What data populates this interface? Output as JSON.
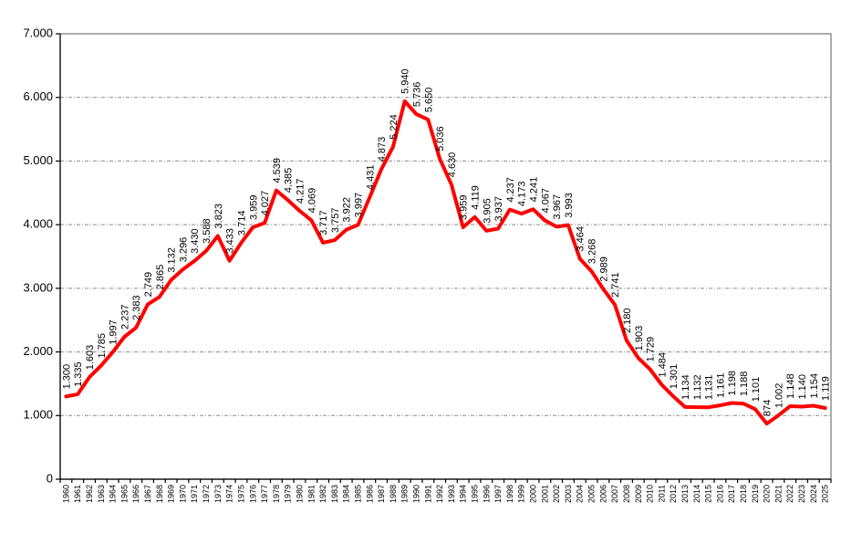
{
  "chart_data": {
    "type": "line",
    "title": "",
    "xlabel": "",
    "ylabel": "",
    "ylim": [
      0,
      7000
    ],
    "yticks": [
      0,
      1000,
      2000,
      3000,
      4000,
      5000,
      6000,
      7000
    ],
    "ytick_labels": [
      "0",
      "1.000",
      "2.000",
      "3.000",
      "4.000",
      "5.000",
      "6.000",
      "7.000"
    ],
    "grid": true,
    "legend": null,
    "series_color": "#ff0000",
    "categories": [
      "1960",
      "1961",
      "1962",
      "1963",
      "1964",
      "1965",
      "1966",
      "1967",
      "1968",
      "1969",
      "1970",
      "1971",
      "1972",
      "1973",
      "1974",
      "1975",
      "1976",
      "1977",
      "1978",
      "1979",
      "1980",
      "1981",
      "1982",
      "1983",
      "1984",
      "1985",
      "1986",
      "1987",
      "1988",
      "1989",
      "1990",
      "1991",
      "1992",
      "1993",
      "1994",
      "1995",
      "1996",
      "1997",
      "1998",
      "1999",
      "2000",
      "2001",
      "2002",
      "2003",
      "2004",
      "2005",
      "2006",
      "2007",
      "2008",
      "2009",
      "2010",
      "2011",
      "2012",
      "2013",
      "2014",
      "2015",
      "2016",
      "2017",
      "2018",
      "2019",
      "2020",
      "2021",
      "2022",
      "2023",
      "2024",
      "2025"
    ],
    "series": [
      {
        "name": "",
        "values": [
          1300,
          1335,
          1603,
          1785,
          1997,
          2237,
          2383,
          2749,
          2865,
          3132,
          3296,
          3430,
          3588,
          3823,
          3433,
          3714,
          3959,
          4027,
          4539,
          4385,
          4217,
          4069,
          3717,
          3757,
          3922,
          3997,
          4431,
          4873,
          5224,
          5940,
          5736,
          5650,
          5036,
          4630,
          3959,
          4119,
          3905,
          3937,
          4237,
          4173,
          4241,
          4067,
          3967,
          3993,
          3464,
          3268,
          2989,
          2741,
          2180,
          1903,
          1729,
          1484,
          1301,
          1134,
          1132,
          1131,
          1161,
          1198,
          1188,
          1101,
          874,
          1002,
          1148,
          1140,
          1154,
          1119
        ],
        "labels": [
          "1.300",
          "1.335",
          "1.603",
          "1.785",
          "1.997",
          "2.237",
          "2.383",
          "2.749",
          "2.865",
          "3.132",
          "3.296",
          "3.430",
          "3.588",
          "3.823",
          "3.433",
          "3.714",
          "3.959",
          "4.027",
          "4.539",
          "4.385",
          "4.217",
          "4.069",
          "3.717",
          "3.757",
          "3.922",
          "3.997",
          "4.431",
          "4.873",
          "5.224",
          "5.940",
          "5.736",
          "5.650",
          "5.036",
          "4.630",
          "3.959",
          "4.119",
          "3.905",
          "3.937",
          "4.237",
          "4.173",
          "4.241",
          "4.067",
          "3.967",
          "3.993",
          "3.464",
          "3.268",
          "2.989",
          "2.741",
          "2.180",
          "1.903",
          "1.729",
          "1.484",
          "1.301",
          "1.134",
          "1.132",
          "1.131",
          "1.161",
          "1.198",
          "1.188",
          "1.101",
          "874",
          "1.002",
          "1.148",
          "1.140",
          "1.154",
          "1.119"
        ]
      }
    ]
  }
}
